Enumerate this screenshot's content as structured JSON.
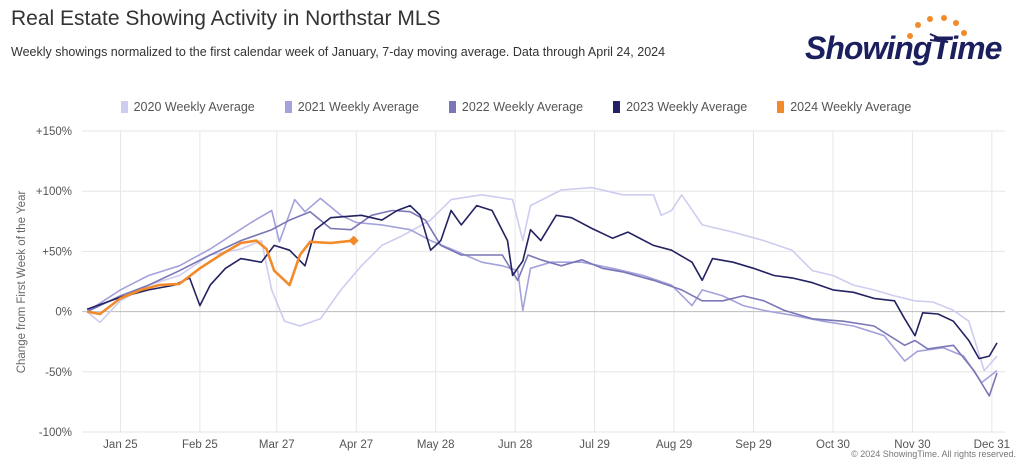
{
  "header": {
    "title": "Real Estate Showing Activity in Northstar MLS",
    "subtitle": "Weekly showings normalized to the first calendar week of January, 7-day moving average. Data through April 24, 2024",
    "logo_text": "ShowingTime"
  },
  "footer": {
    "copyright": "© 2024 ShowingTime. All rights reserved."
  },
  "chart_data": {
    "type": "line",
    "title": "Real Estate Showing Activity in Northstar MLS",
    "xlabel": "",
    "ylabel": "Change from First Week of the Year",
    "ylim": [
      -100,
      150
    ],
    "xlim_day_of_year": [
      10,
      372
    ],
    "y_ticks": [
      150,
      100,
      50,
      0,
      -50,
      -100
    ],
    "y_tick_labels": [
      "+150%",
      "+100%",
      "+50%",
      "0%",
      "-50%",
      "-100%"
    ],
    "x_ticks": [
      {
        "day": 25,
        "label": "Jan 25"
      },
      {
        "day": 56,
        "label": "Feb 25"
      },
      {
        "day": 86,
        "label": "Mar 27"
      },
      {
        "day": 117,
        "label": "Apr 27"
      },
      {
        "day": 148,
        "label": "May 28"
      },
      {
        "day": 179,
        "label": "Jun 28"
      },
      {
        "day": 210,
        "label": "Jul 29"
      },
      {
        "day": 241,
        "label": "Aug 29"
      },
      {
        "day": 272,
        "label": "Sep 29"
      },
      {
        "day": 303,
        "label": "Oct 30"
      },
      {
        "day": 334,
        "label": "Nov 30"
      },
      {
        "day": 365,
        "label": "Dec 31"
      }
    ],
    "legend_position": "top-center",
    "grid": true,
    "series": [
      {
        "name": "2020 Weekly Average",
        "color": "#cdcdf0",
        "points": [
          [
            12,
            0
          ],
          [
            17,
            -9
          ],
          [
            25,
            9
          ],
          [
            36,
            22
          ],
          [
            48,
            30
          ],
          [
            60,
            47
          ],
          [
            72,
            52
          ],
          [
            80,
            59
          ],
          [
            84,
            18
          ],
          [
            89,
            -8
          ],
          [
            95,
            -12
          ],
          [
            103,
            -6
          ],
          [
            111,
            18
          ],
          [
            119,
            38
          ],
          [
            127,
            55
          ],
          [
            135,
            63
          ],
          [
            146,
            76
          ],
          [
            154,
            93
          ],
          [
            166,
            97
          ],
          [
            178,
            93
          ],
          [
            182,
            59
          ],
          [
            185,
            88
          ],
          [
            197,
            101
          ],
          [
            209,
            103
          ],
          [
            221,
            97
          ],
          [
            233,
            97
          ],
          [
            236,
            80
          ],
          [
            240,
            84
          ],
          [
            244,
            97
          ],
          [
            252,
            72
          ],
          [
            264,
            66
          ],
          [
            276,
            59
          ],
          [
            287,
            51
          ],
          [
            295,
            34
          ],
          [
            303,
            30
          ],
          [
            311,
            22
          ],
          [
            319,
            18
          ],
          [
            327,
            13
          ],
          [
            335,
            9
          ],
          [
            342,
            8
          ],
          [
            350,
            1
          ],
          [
            356,
            -8
          ],
          [
            362,
            -49
          ],
          [
            367,
            -37
          ]
        ]
      },
      {
        "name": "2021 Weekly Average",
        "color": "#a3a2dc",
        "points": [
          [
            12,
            0
          ],
          [
            25,
            18
          ],
          [
            36,
            30
          ],
          [
            48,
            38
          ],
          [
            60,
            52
          ],
          [
            68,
            63
          ],
          [
            76,
            74
          ],
          [
            84,
            84
          ],
          [
            87,
            58
          ],
          [
            93,
            93
          ],
          [
            97,
            83
          ],
          [
            103,
            94
          ],
          [
            111,
            80
          ],
          [
            117,
            74
          ],
          [
            127,
            72
          ],
          [
            138,
            68
          ],
          [
            146,
            59
          ],
          [
            154,
            52
          ],
          [
            166,
            41
          ],
          [
            174,
            38
          ],
          [
            180,
            34
          ],
          [
            182,
            1
          ],
          [
            185,
            36
          ],
          [
            193,
            41
          ],
          [
            205,
            41
          ],
          [
            217,
            36
          ],
          [
            229,
            30
          ],
          [
            240,
            22
          ],
          [
            248,
            5
          ],
          [
            252,
            18
          ],
          [
            260,
            13
          ],
          [
            268,
            5
          ],
          [
            276,
            1
          ],
          [
            287,
            -3
          ],
          [
            299,
            -8
          ],
          [
            311,
            -12
          ],
          [
            323,
            -20
          ],
          [
            331,
            -41
          ],
          [
            336,
            -33
          ],
          [
            346,
            -30
          ],
          [
            354,
            -37
          ],
          [
            361,
            -59
          ],
          [
            367,
            -49
          ]
        ]
      },
      {
        "name": "2022 Weekly Average",
        "color": "#7a77b6",
        "points": [
          [
            12,
            0
          ],
          [
            25,
            13
          ],
          [
            36,
            22
          ],
          [
            48,
            34
          ],
          [
            60,
            47
          ],
          [
            72,
            59
          ],
          [
            84,
            68
          ],
          [
            91,
            76
          ],
          [
            99,
            83
          ],
          [
            107,
            69
          ],
          [
            115,
            68
          ],
          [
            123,
            80
          ],
          [
            131,
            84
          ],
          [
            138,
            83
          ],
          [
            144,
            76
          ],
          [
            150,
            55
          ],
          [
            158,
            47
          ],
          [
            166,
            47
          ],
          [
            174,
            47
          ],
          [
            180,
            26
          ],
          [
            184,
            47
          ],
          [
            189,
            43
          ],
          [
            197,
            38
          ],
          [
            205,
            43
          ],
          [
            213,
            36
          ],
          [
            221,
            33
          ],
          [
            233,
            26
          ],
          [
            244,
            18
          ],
          [
            252,
            9
          ],
          [
            260,
            9
          ],
          [
            268,
            13
          ],
          [
            276,
            9
          ],
          [
            284,
            1
          ],
          [
            295,
            -6
          ],
          [
            307,
            -8
          ],
          [
            319,
            -12
          ],
          [
            331,
            -28
          ],
          [
            335,
            -24
          ],
          [
            340,
            -31
          ],
          [
            350,
            -28
          ],
          [
            358,
            -49
          ],
          [
            364,
            -70
          ],
          [
            367,
            -51
          ]
        ]
      },
      {
        "name": "2023 Weekly Average",
        "color": "#232262",
        "points": [
          [
            12,
            2
          ],
          [
            25,
            12
          ],
          [
            36,
            18
          ],
          [
            46,
            22
          ],
          [
            52,
            28
          ],
          [
            56,
            5
          ],
          [
            60,
            22
          ],
          [
            66,
            36
          ],
          [
            72,
            44
          ],
          [
            80,
            41
          ],
          [
            85,
            55
          ],
          [
            91,
            51
          ],
          [
            97,
            38
          ],
          [
            101,
            68
          ],
          [
            107,
            78
          ],
          [
            119,
            80
          ],
          [
            127,
            76
          ],
          [
            133,
            84
          ],
          [
            138,
            88
          ],
          [
            142,
            80
          ],
          [
            146,
            51
          ],
          [
            150,
            59
          ],
          [
            154,
            84
          ],
          [
            158,
            72
          ],
          [
            164,
            88
          ],
          [
            170,
            84
          ],
          [
            176,
            59
          ],
          [
            178,
            30
          ],
          [
            182,
            42
          ],
          [
            185,
            68
          ],
          [
            189,
            59
          ],
          [
            195,
            80
          ],
          [
            201,
            78
          ],
          [
            209,
            69
          ],
          [
            217,
            61
          ],
          [
            223,
            66
          ],
          [
            233,
            55
          ],
          [
            240,
            51
          ],
          [
            248,
            41
          ],
          [
            252,
            26
          ],
          [
            256,
            44
          ],
          [
            264,
            41
          ],
          [
            272,
            36
          ],
          [
            280,
            30
          ],
          [
            287,
            28
          ],
          [
            295,
            24
          ],
          [
            303,
            18
          ],
          [
            311,
            16
          ],
          [
            319,
            11
          ],
          [
            327,
            9
          ],
          [
            331,
            -6
          ],
          [
            335,
            -20
          ],
          [
            338,
            -1
          ],
          [
            344,
            -2
          ],
          [
            350,
            -8
          ],
          [
            356,
            -24
          ],
          [
            360,
            -39
          ],
          [
            364,
            -37
          ],
          [
            367,
            -26
          ]
        ]
      },
      {
        "name": "2024 Weekly Average",
        "color": "#f28a2a",
        "points": [
          [
            12,
            0
          ],
          [
            17,
            -2
          ],
          [
            25,
            11
          ],
          [
            33,
            18
          ],
          [
            40,
            22
          ],
          [
            48,
            23
          ],
          [
            56,
            36
          ],
          [
            64,
            47
          ],
          [
            72,
            57
          ],
          [
            78,
            59
          ],
          [
            82,
            52
          ],
          [
            85,
            34
          ],
          [
            91,
            22
          ],
          [
            95,
            47
          ],
          [
            99,
            58
          ],
          [
            107,
            57
          ],
          [
            116,
            59
          ]
        ]
      }
    ]
  }
}
